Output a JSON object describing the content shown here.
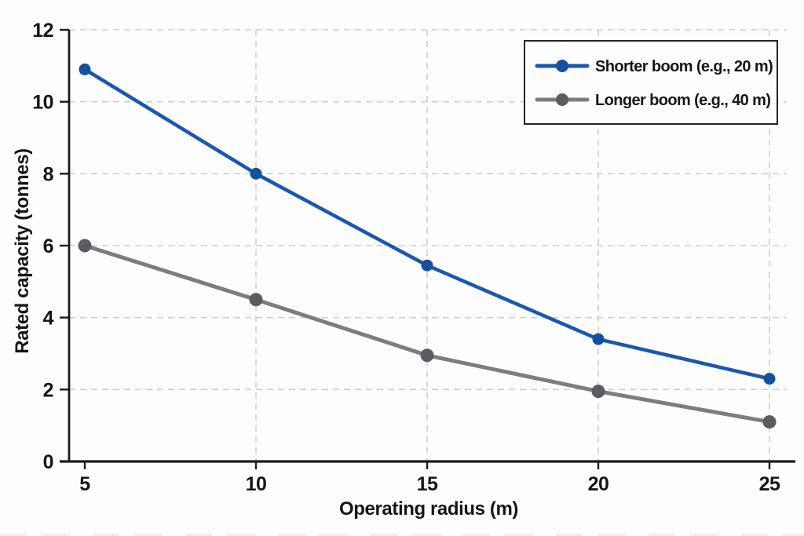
{
  "chart_data": {
    "type": "line",
    "title": "",
    "xlabel": "Operating radius (m)",
    "ylabel": "Rated capacity (tonnes)",
    "x": [
      5,
      10,
      15,
      20,
      25
    ],
    "series": [
      {
        "name": "Shorter boom (e.g., 20 m)",
        "color": "#1a57b0",
        "marker_color": "#14509f",
        "values": [
          10.9,
          8.0,
          5.45,
          3.4,
          2.3
        ]
      },
      {
        "name": "Longer boom (e.g., 40 m)",
        "color": "#7a7d81",
        "marker_color": "#595d61",
        "values": [
          6.0,
          4.5,
          2.95,
          1.95,
          1.1
        ]
      }
    ],
    "xticks": [
      5,
      10,
      15,
      20,
      25
    ],
    "yticks": [
      0,
      2,
      4,
      6,
      8,
      10,
      12
    ],
    "xlim": [
      4.1,
      26.5
    ],
    "ylim": [
      0,
      12
    ],
    "grid": true,
    "grid_style": "dashed",
    "horizontal_gridlines_at": [
      2,
      4,
      6,
      8,
      10,
      12
    ],
    "vertical_gridlines_at": [
      10,
      15,
      20,
      25
    ],
    "legend_position": "top-right"
  },
  "colors": {
    "background": "#fdfdfd",
    "axis": "#1b1b1b",
    "tick": "#1b1b1b",
    "grid": "#cfcfcf",
    "text": "#161616",
    "legend_border": "#242424",
    "legend_fill": "#fdfdfd"
  }
}
